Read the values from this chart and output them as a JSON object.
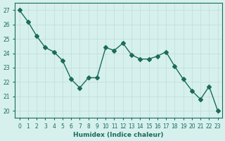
{
  "x": [
    0,
    1,
    2,
    3,
    4,
    5,
    6,
    7,
    8,
    9,
    10,
    11,
    12,
    13,
    14,
    15,
    16,
    17,
    18,
    19,
    20,
    21,
    22,
    23
  ],
  "y": [
    27,
    26.2,
    25.2,
    24.4,
    24.1,
    23.5,
    22.2,
    21.6,
    22.3,
    22.3,
    24.4,
    24.2,
    24.7,
    23.9,
    23.6,
    23.6,
    23.8,
    24.1,
    23.1,
    22.2,
    21.4,
    20.8,
    21.7,
    20.0
  ],
  "line_color": "#1a6b5a",
  "marker": "D",
  "marker_size": 3,
  "bg_color": "#d6f0ee",
  "grid_color": "#c0dbd8",
  "xlabel": "Humidex (Indice chaleur)",
  "ylabel": "",
  "ylim": [
    19.5,
    27.5
  ],
  "xlim": [
    -0.5,
    23.5
  ],
  "yticks": [
    20,
    21,
    22,
    23,
    24,
    25,
    26,
    27
  ],
  "xticks": [
    0,
    1,
    2,
    3,
    4,
    5,
    6,
    7,
    8,
    9,
    10,
    11,
    12,
    13,
    14,
    15,
    16,
    17,
    18,
    19,
    20,
    21,
    22,
    23
  ],
  "title_color": "#1a6b5a",
  "label_color": "#1a6b5a",
  "tick_color": "#1a6b5a"
}
